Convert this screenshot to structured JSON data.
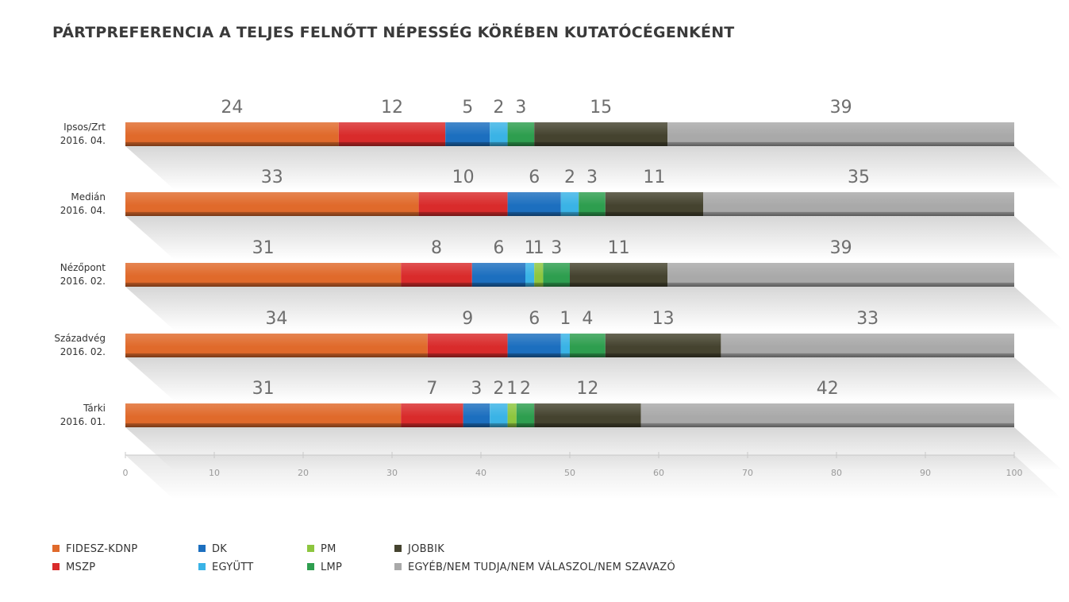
{
  "chart_data": {
    "type": "bar",
    "orientation": "horizontal",
    "stacked": true,
    "title": "PÁRTPREFERENCIA A TELJES FELNŐTT NÉPESSÉG KÖRÉBEN KUTATÓCÉGENKÉNT",
    "categories": [
      {
        "name": "Ipsos/Zrt",
        "date": "2016. 04."
      },
      {
        "name": "Medián",
        "date": "2016. 04."
      },
      {
        "name": "Nézőpont",
        "date": "2016. 02."
      },
      {
        "name": "Századvég",
        "date": "2016. 02."
      },
      {
        "name": "Tárki",
        "date": "2016. 01."
      }
    ],
    "series": [
      {
        "name": "FIDESZ-KDNP",
        "color": "#e06a2b",
        "values": [
          24,
          33,
          31,
          34,
          31
        ]
      },
      {
        "name": "MSZP",
        "color": "#d92b2b",
        "values": [
          12,
          10,
          8,
          9,
          7
        ]
      },
      {
        "name": "DK",
        "color": "#1c6fbf",
        "values": [
          5,
          6,
          6,
          6,
          3
        ]
      },
      {
        "name": "EGYÜTT",
        "color": "#3ab3e6",
        "values": [
          2,
          2,
          1,
          1,
          2
        ]
      },
      {
        "name": "PM",
        "color": "#8dc63f",
        "values": [
          0,
          0,
          1,
          0,
          1
        ]
      },
      {
        "name": "LMP",
        "color": "#2e9e4f",
        "values": [
          3,
          3,
          3,
          4,
          2
        ]
      },
      {
        "name": "JOBBIK",
        "color": "#45432f",
        "values": [
          15,
          11,
          11,
          13,
          12
        ]
      },
      {
        "name": "EGYÉB/NEM TUDJA/NEM VÁLASZOL/NEM SZAVAZÓ",
        "color": "#a9a9a9",
        "values": [
          39,
          35,
          39,
          33,
          42
        ]
      }
    ],
    "value_labels": [
      [
        "24",
        "12",
        "5",
        "2",
        "3",
        "15",
        "39"
      ],
      [
        "33",
        "10",
        "6",
        "2",
        "3",
        "11",
        "35"
      ],
      [
        "31",
        "8",
        "6",
        "1",
        "1",
        "3",
        "11",
        "39"
      ],
      [
        "34",
        "9",
        "6",
        "1",
        "4",
        "13",
        "33"
      ],
      [
        "31",
        "7",
        "3",
        "2",
        "1",
        "2",
        "12",
        "42"
      ]
    ],
    "xlim": [
      0,
      100
    ],
    "xticks": [
      0,
      10,
      20,
      30,
      40,
      50,
      60,
      70,
      80,
      90,
      100
    ],
    "legend_position": "bottom",
    "grid": false
  }
}
